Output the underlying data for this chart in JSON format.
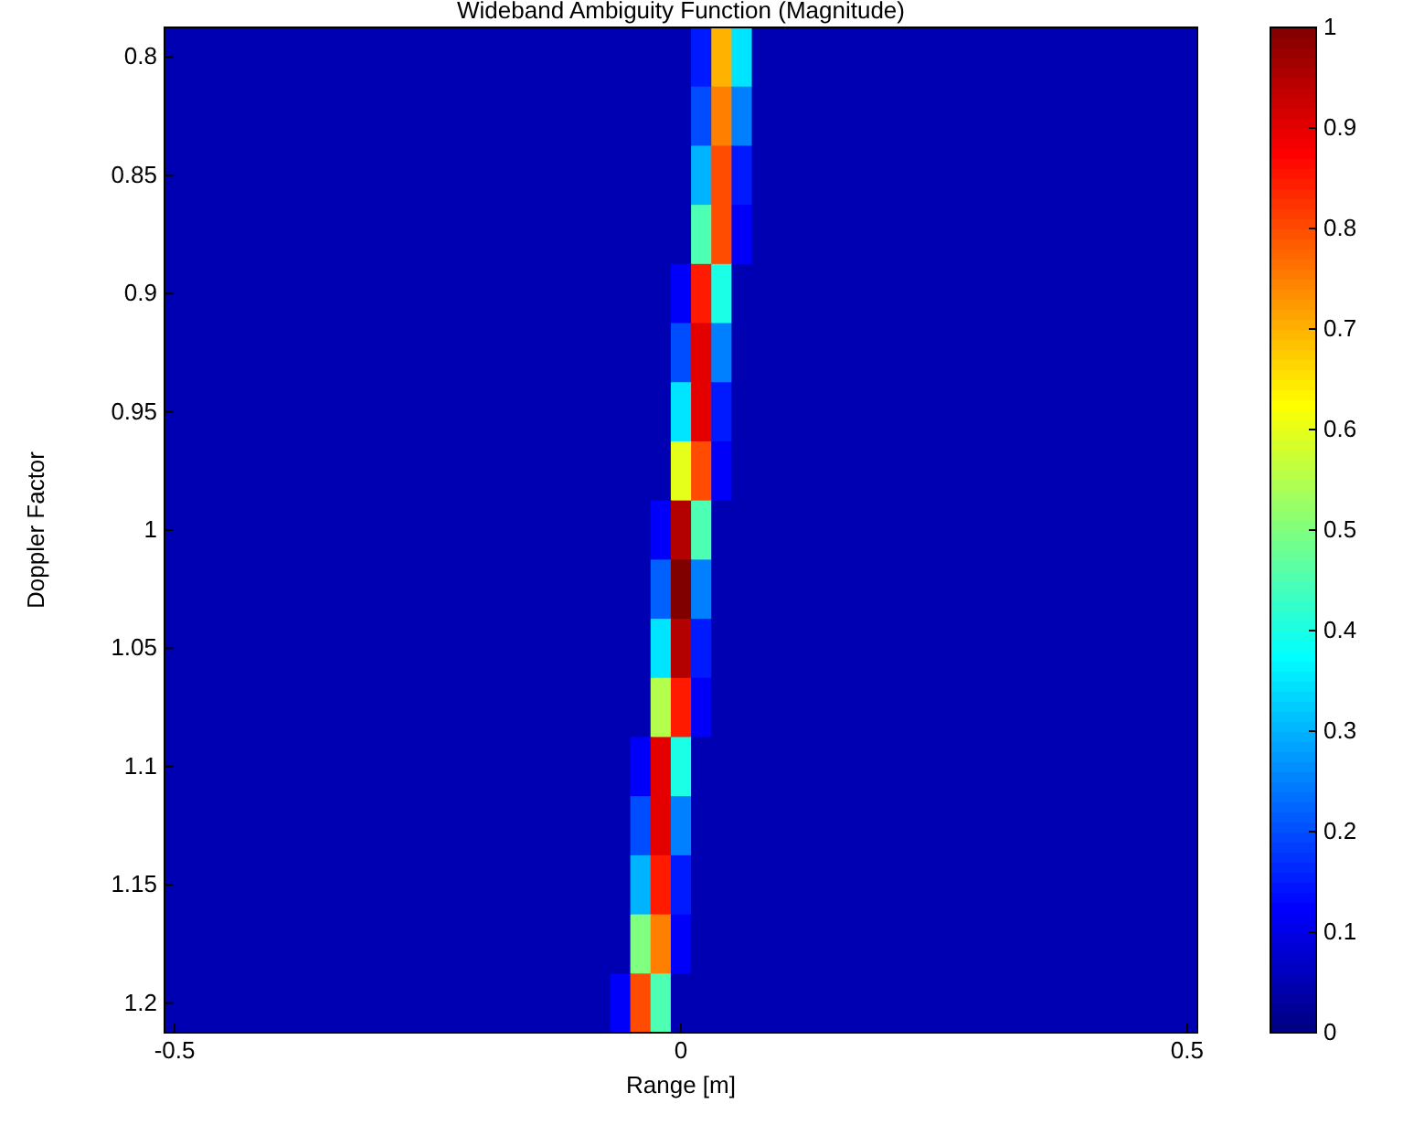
{
  "chart_data": {
    "type": "heatmap",
    "title": "Wideband Ambiguity Function (Magnitude)",
    "xlabel": "Range [m]",
    "ylabel": "Doppler Factor",
    "categories": [
      "-0.5",
      null,
      null,
      null,
      null,
      null,
      null,
      null,
      null,
      null,
      null,
      null,
      null,
      null,
      null,
      null,
      null,
      null,
      null,
      null,
      null,
      null,
      null,
      null,
      null,
      "0",
      null,
      null,
      null,
      null,
      null,
      null,
      null,
      null,
      null,
      null,
      null,
      null,
      null,
      null,
      null,
      null,
      null,
      null,
      null,
      null,
      null,
      null,
      null,
      null,
      "0.5"
    ],
    "y_categories": [
      "0.8",
      null,
      "0.85",
      null,
      "0.9",
      null,
      "0.95",
      null,
      "1",
      null,
      "1.05",
      null,
      "1.1",
      null,
      "1.15",
      null,
      "1.2"
    ],
    "cells": [
      [
        0.05,
        0.05,
        0.05,
        0.05,
        0.05,
        0.05,
        0.05,
        0.05,
        0.05,
        0.05,
        0.05,
        0.05,
        0.05,
        0.05,
        0.05,
        0.05,
        0.05,
        0.05,
        0.05,
        0.05,
        0.05,
        0.05,
        0.05,
        0.05,
        0.05,
        0.05,
        0.15,
        0.7,
        0.35,
        0.05,
        0.05,
        0.05,
        0.05,
        0.05,
        0.05,
        0.05,
        0.05,
        0.05,
        0.05,
        0.05,
        0.05,
        0.05,
        0.05,
        0.05,
        0.05,
        0.05,
        0.05,
        0.05,
        0.05,
        0.05,
        0.05
      ],
      [
        0.05,
        0.05,
        0.05,
        0.05,
        0.05,
        0.05,
        0.05,
        0.05,
        0.05,
        0.05,
        0.05,
        0.05,
        0.05,
        0.05,
        0.05,
        0.05,
        0.05,
        0.05,
        0.05,
        0.05,
        0.05,
        0.05,
        0.05,
        0.05,
        0.05,
        0.05,
        0.2,
        0.75,
        0.25,
        0.05,
        0.05,
        0.05,
        0.05,
        0.05,
        0.05,
        0.05,
        0.05,
        0.05,
        0.05,
        0.05,
        0.05,
        0.05,
        0.05,
        0.05,
        0.05,
        0.05,
        0.05,
        0.05,
        0.05,
        0.05,
        0.05
      ],
      [
        0.05,
        0.05,
        0.05,
        0.05,
        0.05,
        0.05,
        0.05,
        0.05,
        0.05,
        0.05,
        0.05,
        0.05,
        0.05,
        0.05,
        0.05,
        0.05,
        0.05,
        0.05,
        0.05,
        0.05,
        0.05,
        0.05,
        0.05,
        0.05,
        0.05,
        0.05,
        0.3,
        0.8,
        0.15,
        0.05,
        0.05,
        0.05,
        0.05,
        0.05,
        0.05,
        0.05,
        0.05,
        0.05,
        0.05,
        0.05,
        0.05,
        0.05,
        0.05,
        0.05,
        0.05,
        0.05,
        0.05,
        0.05,
        0.05,
        0.05,
        0.05
      ],
      [
        0.05,
        0.05,
        0.05,
        0.05,
        0.05,
        0.05,
        0.05,
        0.05,
        0.05,
        0.05,
        0.05,
        0.05,
        0.05,
        0.05,
        0.05,
        0.05,
        0.05,
        0.05,
        0.05,
        0.05,
        0.05,
        0.05,
        0.05,
        0.05,
        0.05,
        0.05,
        0.45,
        0.8,
        0.12,
        0.05,
        0.05,
        0.05,
        0.05,
        0.05,
        0.05,
        0.05,
        0.05,
        0.05,
        0.05,
        0.05,
        0.05,
        0.05,
        0.05,
        0.05,
        0.05,
        0.05,
        0.05,
        0.05,
        0.05,
        0.05,
        0.05
      ],
      [
        0.05,
        0.05,
        0.05,
        0.05,
        0.05,
        0.05,
        0.05,
        0.05,
        0.05,
        0.05,
        0.05,
        0.05,
        0.05,
        0.05,
        0.05,
        0.05,
        0.05,
        0.05,
        0.05,
        0.05,
        0.05,
        0.05,
        0.05,
        0.05,
        0.05,
        0.12,
        0.85,
        0.4,
        0.05,
        0.05,
        0.05,
        0.05,
        0.05,
        0.05,
        0.05,
        0.05,
        0.05,
        0.05,
        0.05,
        0.05,
        0.05,
        0.05,
        0.05,
        0.05,
        0.05,
        0.05,
        0.05,
        0.05,
        0.05,
        0.05,
        0.05
      ],
      [
        0.05,
        0.05,
        0.05,
        0.05,
        0.05,
        0.05,
        0.05,
        0.05,
        0.05,
        0.05,
        0.05,
        0.05,
        0.05,
        0.05,
        0.05,
        0.05,
        0.05,
        0.05,
        0.05,
        0.05,
        0.05,
        0.05,
        0.05,
        0.05,
        0.05,
        0.2,
        0.9,
        0.25,
        0.05,
        0.05,
        0.05,
        0.05,
        0.05,
        0.05,
        0.05,
        0.05,
        0.05,
        0.05,
        0.05,
        0.05,
        0.05,
        0.05,
        0.05,
        0.05,
        0.05,
        0.05,
        0.05,
        0.05,
        0.05,
        0.05,
        0.05
      ],
      [
        0.05,
        0.05,
        0.05,
        0.05,
        0.05,
        0.05,
        0.05,
        0.05,
        0.05,
        0.05,
        0.05,
        0.05,
        0.05,
        0.05,
        0.05,
        0.05,
        0.05,
        0.05,
        0.05,
        0.05,
        0.05,
        0.05,
        0.05,
        0.05,
        0.05,
        0.35,
        0.9,
        0.15,
        0.05,
        0.05,
        0.05,
        0.05,
        0.05,
        0.05,
        0.05,
        0.05,
        0.05,
        0.05,
        0.05,
        0.05,
        0.05,
        0.05,
        0.05,
        0.05,
        0.05,
        0.05,
        0.05,
        0.05,
        0.05,
        0.05,
        0.05
      ],
      [
        0.05,
        0.05,
        0.05,
        0.05,
        0.05,
        0.05,
        0.05,
        0.05,
        0.05,
        0.05,
        0.05,
        0.05,
        0.05,
        0.05,
        0.05,
        0.05,
        0.05,
        0.05,
        0.05,
        0.05,
        0.05,
        0.05,
        0.05,
        0.05,
        0.05,
        0.6,
        0.8,
        0.12,
        0.05,
        0.05,
        0.05,
        0.05,
        0.05,
        0.05,
        0.05,
        0.05,
        0.05,
        0.05,
        0.05,
        0.05,
        0.05,
        0.05,
        0.05,
        0.05,
        0.05,
        0.05,
        0.05,
        0.05,
        0.05,
        0.05,
        0.05
      ],
      [
        0.05,
        0.05,
        0.05,
        0.05,
        0.05,
        0.05,
        0.05,
        0.05,
        0.05,
        0.05,
        0.05,
        0.05,
        0.05,
        0.05,
        0.05,
        0.05,
        0.05,
        0.05,
        0.05,
        0.05,
        0.05,
        0.05,
        0.05,
        0.05,
        0.12,
        0.95,
        0.45,
        0.05,
        0.05,
        0.05,
        0.05,
        0.05,
        0.05,
        0.05,
        0.05,
        0.05,
        0.05,
        0.05,
        0.05,
        0.05,
        0.05,
        0.05,
        0.05,
        0.05,
        0.05,
        0.05,
        0.05,
        0.05,
        0.05,
        0.05,
        0.05
      ],
      [
        0.05,
        0.05,
        0.05,
        0.05,
        0.05,
        0.05,
        0.05,
        0.05,
        0.05,
        0.05,
        0.05,
        0.05,
        0.05,
        0.05,
        0.05,
        0.05,
        0.05,
        0.05,
        0.05,
        0.05,
        0.05,
        0.05,
        0.05,
        0.05,
        0.22,
        1,
        0.25,
        0.05,
        0.05,
        0.05,
        0.05,
        0.05,
        0.05,
        0.05,
        0.05,
        0.05,
        0.05,
        0.05,
        0.05,
        0.05,
        0.05,
        0.05,
        0.05,
        0.05,
        0.05,
        0.05,
        0.05,
        0.05,
        0.05,
        0.05,
        0.05
      ],
      [
        0.05,
        0.05,
        0.05,
        0.05,
        0.05,
        0.05,
        0.05,
        0.05,
        0.05,
        0.05,
        0.05,
        0.05,
        0.05,
        0.05,
        0.05,
        0.05,
        0.05,
        0.05,
        0.05,
        0.05,
        0.05,
        0.05,
        0.05,
        0.05,
        0.35,
        0.95,
        0.15,
        0.05,
        0.05,
        0.05,
        0.05,
        0.05,
        0.05,
        0.05,
        0.05,
        0.05,
        0.05,
        0.05,
        0.05,
        0.05,
        0.05,
        0.05,
        0.05,
        0.05,
        0.05,
        0.05,
        0.05,
        0.05,
        0.05,
        0.05,
        0.05
      ],
      [
        0.05,
        0.05,
        0.05,
        0.05,
        0.05,
        0.05,
        0.05,
        0.05,
        0.05,
        0.05,
        0.05,
        0.05,
        0.05,
        0.05,
        0.05,
        0.05,
        0.05,
        0.05,
        0.05,
        0.05,
        0.05,
        0.05,
        0.05,
        0.05,
        0.55,
        0.85,
        0.12,
        0.05,
        0.05,
        0.05,
        0.05,
        0.05,
        0.05,
        0.05,
        0.05,
        0.05,
        0.05,
        0.05,
        0.05,
        0.05,
        0.05,
        0.05,
        0.05,
        0.05,
        0.05,
        0.05,
        0.05,
        0.05,
        0.05,
        0.05,
        0.05
      ],
      [
        0.05,
        0.05,
        0.05,
        0.05,
        0.05,
        0.05,
        0.05,
        0.05,
        0.05,
        0.05,
        0.05,
        0.05,
        0.05,
        0.05,
        0.05,
        0.05,
        0.05,
        0.05,
        0.05,
        0.05,
        0.05,
        0.05,
        0.05,
        0.12,
        0.9,
        0.4,
        0.05,
        0.05,
        0.05,
        0.05,
        0.05,
        0.05,
        0.05,
        0.05,
        0.05,
        0.05,
        0.05,
        0.05,
        0.05,
        0.05,
        0.05,
        0.05,
        0.05,
        0.05,
        0.05,
        0.05,
        0.05,
        0.05,
        0.05,
        0.05,
        0.05
      ],
      [
        0.05,
        0.05,
        0.05,
        0.05,
        0.05,
        0.05,
        0.05,
        0.05,
        0.05,
        0.05,
        0.05,
        0.05,
        0.05,
        0.05,
        0.05,
        0.05,
        0.05,
        0.05,
        0.05,
        0.05,
        0.05,
        0.05,
        0.05,
        0.2,
        0.9,
        0.25,
        0.05,
        0.05,
        0.05,
        0.05,
        0.05,
        0.05,
        0.05,
        0.05,
        0.05,
        0.05,
        0.05,
        0.05,
        0.05,
        0.05,
        0.05,
        0.05,
        0.05,
        0.05,
        0.05,
        0.05,
        0.05,
        0.05,
        0.05,
        0.05,
        0.05
      ],
      [
        0.05,
        0.05,
        0.05,
        0.05,
        0.05,
        0.05,
        0.05,
        0.05,
        0.05,
        0.05,
        0.05,
        0.05,
        0.05,
        0.05,
        0.05,
        0.05,
        0.05,
        0.05,
        0.05,
        0.05,
        0.05,
        0.05,
        0.05,
        0.3,
        0.85,
        0.15,
        0.05,
        0.05,
        0.05,
        0.05,
        0.05,
        0.05,
        0.05,
        0.05,
        0.05,
        0.05,
        0.05,
        0.05,
        0.05,
        0.05,
        0.05,
        0.05,
        0.05,
        0.05,
        0.05,
        0.05,
        0.05,
        0.05,
        0.05,
        0.05,
        0.05
      ],
      [
        0.05,
        0.05,
        0.05,
        0.05,
        0.05,
        0.05,
        0.05,
        0.05,
        0.05,
        0.05,
        0.05,
        0.05,
        0.05,
        0.05,
        0.05,
        0.05,
        0.05,
        0.05,
        0.05,
        0.05,
        0.05,
        0.05,
        0.05,
        0.5,
        0.75,
        0.12,
        0.05,
        0.05,
        0.05,
        0.05,
        0.05,
        0.05,
        0.05,
        0.05,
        0.05,
        0.05,
        0.05,
        0.05,
        0.05,
        0.05,
        0.05,
        0.05,
        0.05,
        0.05,
        0.05,
        0.05,
        0.05,
        0.05,
        0.05,
        0.05,
        0.05
      ],
      [
        0.05,
        0.05,
        0.05,
        0.05,
        0.05,
        0.05,
        0.05,
        0.05,
        0.05,
        0.05,
        0.05,
        0.05,
        0.05,
        0.05,
        0.05,
        0.05,
        0.05,
        0.05,
        0.05,
        0.05,
        0.05,
        0.05,
        0.12,
        0.8,
        0.45,
        0.05,
        0.05,
        0.05,
        0.05,
        0.05,
        0.05,
        0.05,
        0.05,
        0.05,
        0.05,
        0.05,
        0.05,
        0.05,
        0.05,
        0.05,
        0.05,
        0.05,
        0.05,
        0.05,
        0.05,
        0.05,
        0.05,
        0.05,
        0.05,
        0.05,
        0.05
      ]
    ],
    "clim": [
      0,
      1
    ],
    "cticks": [
      0,
      0.1,
      0.2,
      0.3,
      0.4,
      0.5,
      0.6,
      0.7,
      0.8,
      0.9,
      1
    ]
  }
}
